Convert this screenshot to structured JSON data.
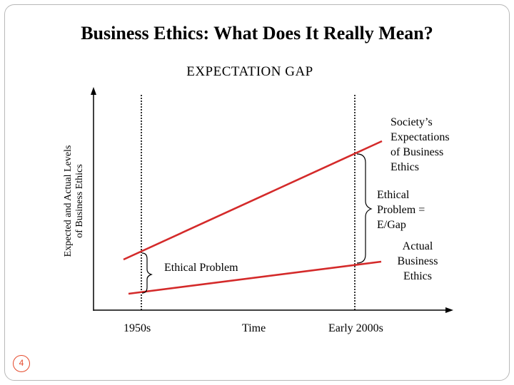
{
  "slide": {
    "title": "Business Ethics: What Does It Really Mean?",
    "page_number": "4",
    "accent_color": "#e54a2c"
  },
  "diagram": {
    "heading": "EXPECTATION GAP",
    "y_axis_label": [
      "Expected and Actual Levels",
      "of Business Ethics"
    ],
    "x_axis_labels": {
      "start": "1950s",
      "middle": "Time",
      "end": "Early 2000s"
    },
    "lines": {
      "expectations": [
        "Society’s",
        "Expectations",
        "of Business",
        "Ethics"
      ],
      "actual": [
        "Actual",
        "Business",
        "Ethics"
      ],
      "color": "#d42a2a"
    },
    "gap_labels": {
      "early": "Ethical Problem",
      "late": [
        "Ethical",
        "Problem =",
        "E/Gap"
      ]
    }
  }
}
